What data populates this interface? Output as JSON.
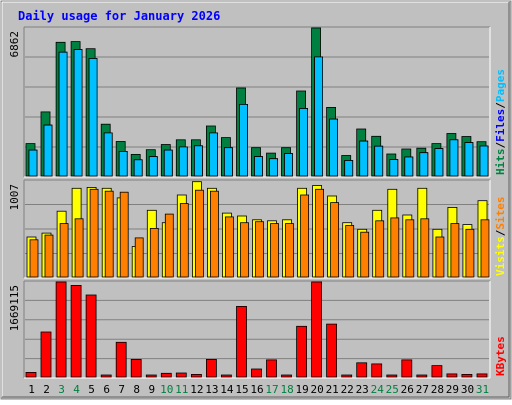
{
  "chart_data": {
    "title": "Daily usage for January 2026",
    "type": "bar",
    "days": [
      "1",
      "2",
      "3",
      "4",
      "5",
      "6",
      "7",
      "8",
      "9",
      "10",
      "11",
      "12",
      "13",
      "14",
      "15",
      "16",
      "17",
      "18",
      "19",
      "20",
      "21",
      "22",
      "23",
      "24",
      "25",
      "26",
      "27",
      "28",
      "29",
      "30",
      "31"
    ],
    "weekend_days": [
      "3",
      "4",
      "10",
      "11",
      "17",
      "18",
      "24",
      "25",
      "31"
    ],
    "panels": [
      {
        "id": "hits",
        "scale_label": "6862",
        "scale_max": 6862,
        "right_labels": [
          {
            "text": "Hits",
            "color": "#008040"
          },
          {
            "text": "/",
            "color": "#000000"
          },
          {
            "text": "Files",
            "color": "#0000ff"
          },
          {
            "text": "/",
            "color": "#000000"
          },
          {
            "text": "Pages",
            "color": "#00c0ff"
          }
        ],
        "series": [
          {
            "name": "Hits",
            "color": "#008040",
            "values": [
              1500,
              2970,
              6200,
              6230,
              5900,
              2400,
              1600,
              1000,
              1220,
              1460,
              1680,
              1680,
              2320,
              1780,
              4080,
              1310,
              1060,
              1310,
              3940,
              6860,
              3180,
              950,
              2180,
              1840,
              1020,
              1250,
              1290,
              1500,
              1970,
              1830,
              1590
            ]
          },
          {
            "name": "Files",
            "color": "#0000ff",
            "values": [
              1200,
              2360,
              5740,
              5860,
              5450,
              2000,
              1140,
              750,
              900,
              1200,
              1350,
              1400,
              2000,
              1310,
              3320,
              900,
              800,
              1040,
              3130,
              5520,
              2640,
              720,
              1620,
              1380,
              760,
              880,
              1080,
              1270,
              1680,
              1550,
              1390
            ]
          },
          {
            "name": "Pages",
            "color": "#00c0ff",
            "values": [
              1200,
              2360,
              5740,
              5860,
              5450,
              2000,
              1140,
              750,
              900,
              1200,
              1350,
              1400,
              2000,
              1310,
              3320,
              900,
              800,
              1040,
              3130,
              5520,
              2640,
              720,
              1620,
              1380,
              760,
              880,
              1080,
              1270,
              1680,
              1550,
              1390
            ]
          }
        ]
      },
      {
        "id": "visits",
        "scale_label": "1007",
        "scale_max": 1007,
        "right_labels": [
          {
            "text": "Visits",
            "color": "#ffff00"
          },
          {
            "text": "/",
            "color": "#000000"
          },
          {
            "text": "Sites",
            "color": "#ff8000"
          }
        ],
        "series": [
          {
            "name": "Visits",
            "color": "#ffff00",
            "values": [
              420,
              460,
              690,
              930,
              940,
              930,
              830,
              320,
              700,
              570,
              860,
              1000,
              930,
              670,
              640,
              600,
              590,
              600,
              930,
              960,
              850,
              570,
              500,
              700,
              920,
              650,
              930,
              500,
              730,
              550,
              800
            ]
          },
          {
            "name": "Sites",
            "color": "#ff8000",
            "values": [
              390,
              440,
              560,
              610,
              920,
              900,
              890,
              410,
              510,
              660,
              770,
              910,
              900,
              630,
              570,
              580,
              560,
              560,
              860,
              920,
              780,
              540,
              470,
              590,
              620,
              600,
              610,
              420,
              560,
              500,
              600
            ]
          }
        ]
      },
      {
        "id": "kbytes",
        "scale_label": "1669115",
        "scale_max": 1669115,
        "right_labels": [
          {
            "text": "KBytes",
            "color": "#ff0000"
          }
        ],
        "series": [
          {
            "name": "KBytes",
            "color": "#ff0000",
            "values": [
              80000,
              790000,
              1669000,
              1610000,
              1440000,
              35000,
              610000,
              310000,
              35000,
              65000,
              70000,
              45000,
              310000,
              35000,
              1240000,
              140000,
              300000,
              35000,
              890000,
              1669000,
              930000,
              35000,
              250000,
              230000,
              35000,
              300000,
              35000,
              200000,
              55000,
              45000,
              55000
            ]
          }
        ]
      }
    ]
  }
}
